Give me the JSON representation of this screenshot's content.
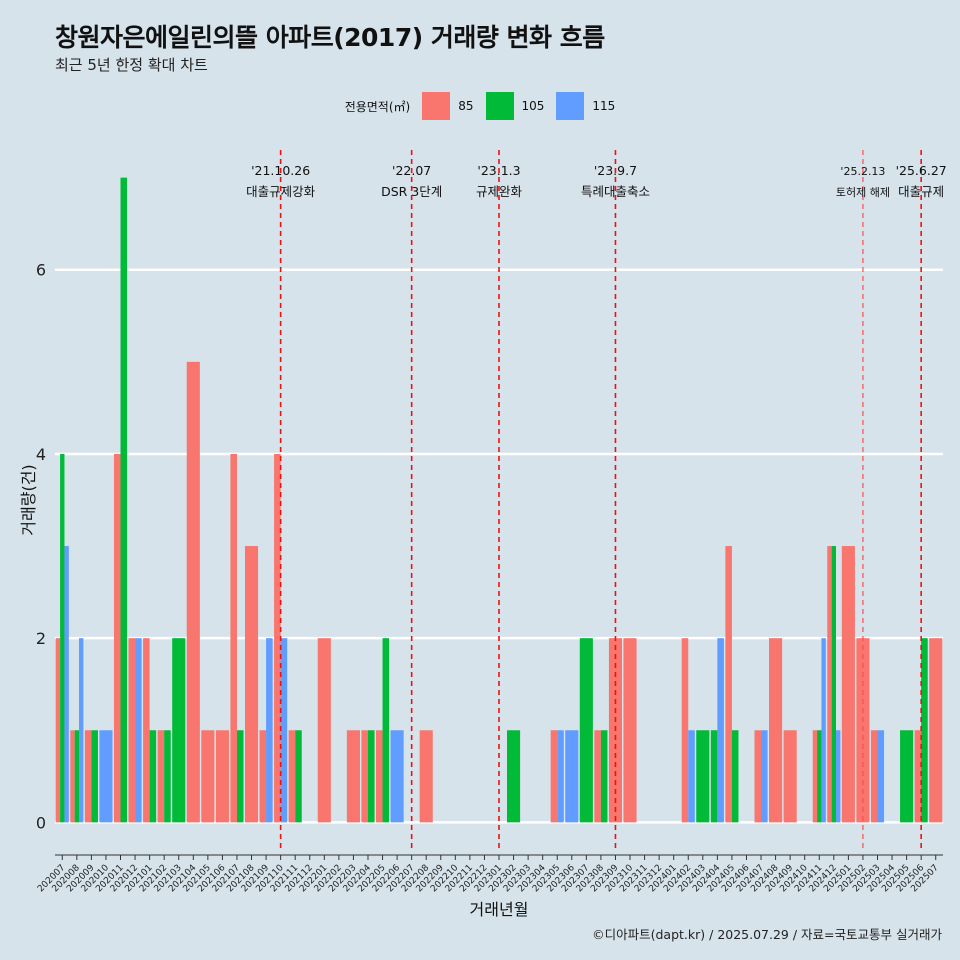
{
  "title": "창원자은에일린의뜰 아파트(2017) 거래량 변화 흐름",
  "subtitle": "최근 5년 한정 확대 차트",
  "legend": {
    "title": "전용면적(㎡)",
    "items": [
      {
        "name": "85",
        "color": "#f8766d"
      },
      {
        "name": "105",
        "color": "#00ba38"
      },
      {
        "name": "115",
        "color": "#619cff"
      }
    ]
  },
  "footer": "©디아파트(dapt.kr) / 2025.07.29 / 자료=국토교통부 실거래가",
  "chart_data": {
    "type": "bar",
    "xlabel": "거래년월",
    "ylabel": "거래량(건)",
    "ylim": [
      -0.3,
      7.3
    ],
    "yticks": [
      0,
      2,
      4,
      6
    ],
    "grid": true,
    "legend_position": "top",
    "categories": [
      "202007",
      "202008",
      "202009",
      "202010",
      "202011",
      "202012",
      "202101",
      "202102",
      "202103",
      "202104",
      "202105",
      "202106",
      "202107",
      "202108",
      "202109",
      "202110",
      "202111",
      "202112",
      "202201",
      "202202",
      "202203",
      "202204",
      "202205",
      "202206",
      "202207",
      "202208",
      "202209",
      "202210",
      "202211",
      "202212",
      "202301",
      "202302",
      "202303",
      "202304",
      "202305",
      "202306",
      "202307",
      "202308",
      "202309",
      "202310",
      "202311",
      "202312",
      "202401",
      "202402",
      "202403",
      "202404",
      "202405",
      "202406",
      "202407",
      "202408",
      "202409",
      "202410",
      "202411",
      "202412",
      "202501",
      "202502",
      "202503",
      "202504",
      "202505",
      "202506",
      "202507"
    ],
    "series": [
      {
        "name": "85",
        "color": "#f8766d",
        "values": [
          2,
          1,
          1,
          0,
          4,
          2,
          2,
          1,
          0,
          5,
          1,
          1,
          4,
          3,
          1,
          4,
          1,
          0,
          2,
          0,
          1,
          1,
          1,
          0,
          0,
          1,
          0,
          0,
          0,
          0,
          0,
          0,
          0,
          0,
          1,
          0,
          0,
          1,
          2,
          2,
          0,
          0,
          0,
          2,
          0,
          0,
          3,
          0,
          1,
          2,
          1,
          0,
          1,
          3,
          3,
          2,
          1,
          0,
          0,
          1,
          2
        ]
      },
      {
        "name": "105",
        "color": "#00ba38",
        "values": [
          4,
          1,
          1,
          0,
          7,
          0,
          1,
          1,
          2,
          0,
          0,
          0,
          1,
          0,
          0,
          0,
          1,
          0,
          0,
          0,
          0,
          1,
          2,
          0,
          0,
          0,
          0,
          0,
          0,
          0,
          0,
          1,
          0,
          0,
          0,
          0,
          2,
          1,
          0,
          0,
          0,
          0,
          0,
          0,
          1,
          1,
          1,
          0,
          0,
          0,
          0,
          0,
          1,
          3,
          0,
          0,
          0,
          0,
          1,
          2,
          0
        ]
      },
      {
        "name": "115",
        "color": "#619cff",
        "values": [
          3,
          2,
          0,
          1,
          0,
          2,
          0,
          0,
          0,
          0,
          0,
          0,
          0,
          0,
          2,
          2,
          0,
          0,
          0,
          0,
          0,
          0,
          0,
          1,
          0,
          0,
          0,
          0,
          0,
          0,
          0,
          0,
          0,
          0,
          1,
          1,
          0,
          0,
          0,
          0,
          0,
          0,
          0,
          1,
          0,
          2,
          0,
          0,
          1,
          0,
          0,
          0,
          2,
          1,
          0,
          0,
          1,
          0,
          0,
          0,
          0
        ]
      }
    ],
    "annotations": [
      {
        "x": "202110",
        "date": "'21.10.26",
        "text": "대출규제강화",
        "style": "dashed"
      },
      {
        "x": "202207",
        "date": "'22.07",
        "text": "DSR 3단계",
        "style": "dashed"
      },
      {
        "x": "202301",
        "date": "'23.1.3",
        "text": "규제완화",
        "style": "dashed"
      },
      {
        "x": "202309",
        "date": "'23.9.7",
        "text": "특례대출축소",
        "style": "dashed"
      },
      {
        "x": "202502",
        "date": "'25.2.13",
        "text": "토허제 해제",
        "style": "dashed-thin"
      },
      {
        "x": "202506",
        "date": "'25.6.27",
        "text": "대출규제",
        "style": "dashed"
      }
    ]
  }
}
